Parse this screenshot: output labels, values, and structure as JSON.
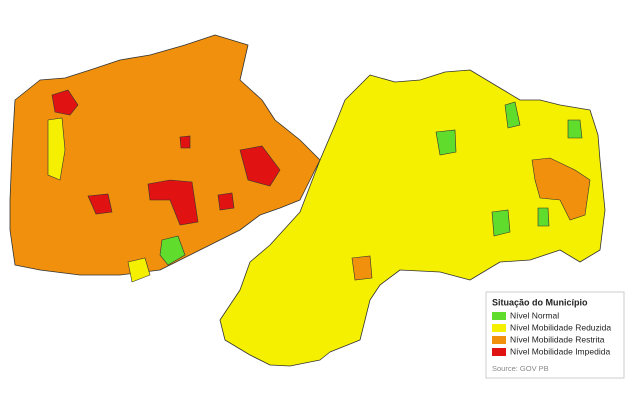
{
  "legend": {
    "title": "Situação do Município",
    "items": [
      {
        "label": "Nível Normal",
        "color": "#5fdc2c"
      },
      {
        "label": "Nível Mobilidade Reduzida",
        "color": "#f5f000"
      },
      {
        "label": "Nível Mobilidade Restrita",
        "color": "#f0900c"
      },
      {
        "label": "Nível Mobilidade Impedida",
        "color": "#e01212"
      }
    ]
  },
  "source": "Source: GOV PB"
}
